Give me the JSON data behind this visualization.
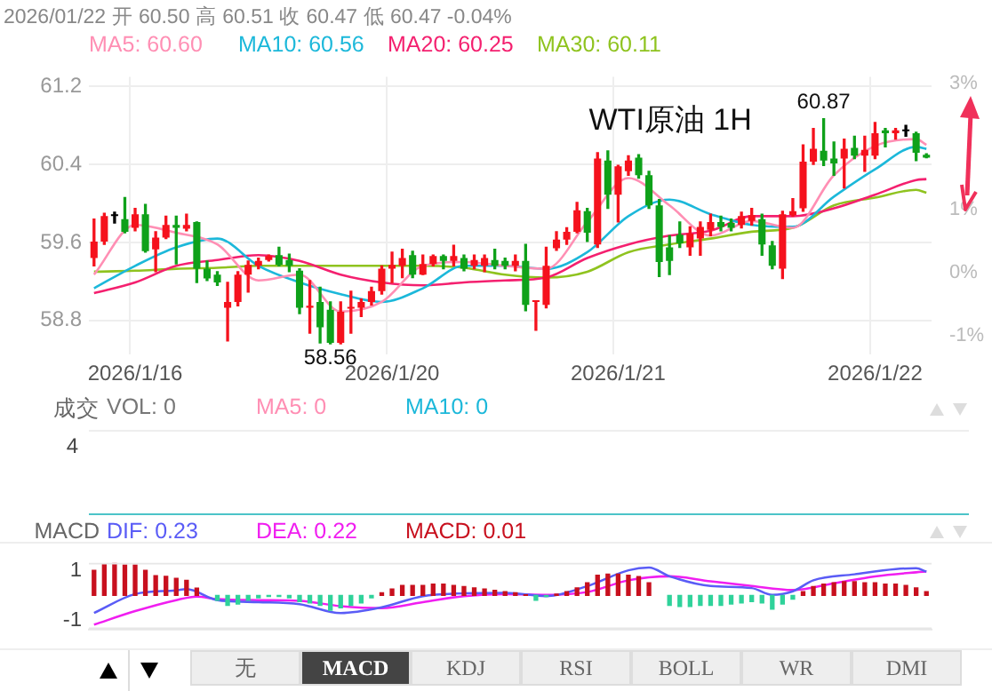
{
  "chart_data": [
    {
      "type": "candlestick",
      "title": "WTI原油 1H",
      "subtitle": "2026/01/22 开 60.50 高 60.51 收 60.47 低 60.47 -0.04%",
      "categories": [
        null,
        null,
        null,
        null,
        "2026/1/16",
        null,
        null,
        null,
        null,
        null,
        null,
        null,
        null,
        null,
        null,
        null,
        null,
        null,
        null,
        null,
        null,
        null,
        null,
        null,
        null,
        null,
        null,
        null,
        null,
        "2026/1/20",
        null,
        null,
        null,
        null,
        null,
        null,
        null,
        null,
        null,
        null,
        null,
        null,
        null,
        null,
        null,
        null,
        null,
        null,
        null,
        null,
        null,
        "2026/1/21",
        null,
        null,
        null,
        null,
        null,
        null,
        null,
        null,
        null,
        null,
        null,
        null,
        null,
        null,
        null,
        null,
        null,
        null,
        null,
        null,
        null,
        null,
        null,
        null,
        "2026/1/22",
        null,
        null,
        null,
        null,
        null
      ],
      "ohlc": [
        [
          59.44,
          59.84,
          59.36,
          59.61
        ],
        [
          59.61,
          59.9,
          59.58,
          59.87
        ],
        [
          59.87,
          59.91,
          59.8,
          59.87
        ],
        [
          59.84,
          60.06,
          59.7,
          59.71
        ],
        [
          59.75,
          59.95,
          59.72,
          59.89
        ],
        [
          59.89,
          59.99,
          59.5,
          59.51
        ],
        [
          59.53,
          59.71,
          59.3,
          59.65
        ],
        [
          59.65,
          59.87,
          59.64,
          59.78
        ],
        [
          59.78,
          59.87,
          59.38,
          59.75
        ],
        [
          59.74,
          59.89,
          59.72,
          59.78
        ],
        [
          59.81,
          59.81,
          59.19,
          59.33
        ],
        [
          59.33,
          59.41,
          59.21,
          59.23
        ],
        [
          59.27,
          59.3,
          59.16,
          59.19
        ],
        [
          58.93,
          59.19,
          58.59,
          58.99
        ],
        [
          58.99,
          59.3,
          58.95,
          59.27
        ],
        [
          59.27,
          59.41,
          59.09,
          59.37
        ],
        [
          59.36,
          59.44,
          59.33,
          59.41
        ],
        [
          59.42,
          59.47,
          59.41,
          59.46
        ],
        [
          59.47,
          59.55,
          59.36,
          59.37
        ],
        [
          59.42,
          59.48,
          59.3,
          59.36
        ],
        [
          59.31,
          59.33,
          58.87,
          58.93
        ],
        [
          58.93,
          59.21,
          58.67,
          58.95
        ],
        [
          58.99,
          59.14,
          58.57,
          58.73
        ],
        [
          58.91,
          58.99,
          58.56,
          58.57
        ],
        [
          58.57,
          58.99,
          58.56,
          58.89
        ],
        [
          58.92,
          59.1,
          58.67,
          58.94
        ],
        [
          58.93,
          59.02,
          58.84,
          58.99
        ],
        [
          58.99,
          59.14,
          58.96,
          59.1
        ],
        [
          59.1,
          59.36,
          59.07,
          59.33
        ],
        [
          59.33,
          59.5,
          59.19,
          59.37
        ],
        [
          59.36,
          59.53,
          59.24,
          59.44
        ],
        [
          59.47,
          59.51,
          59.24,
          59.27
        ],
        [
          59.27,
          59.47,
          59.27,
          59.38
        ],
        [
          59.38,
          59.47,
          59.36,
          59.46
        ],
        [
          59.46,
          59.47,
          59.33,
          59.41
        ],
        [
          59.41,
          59.57,
          59.36,
          59.46
        ],
        [
          59.44,
          59.47,
          59.31,
          59.33
        ],
        [
          59.36,
          59.47,
          59.33,
          59.42
        ],
        [
          59.36,
          59.47,
          59.3,
          59.44
        ],
        [
          59.42,
          59.53,
          59.33,
          59.36
        ],
        [
          59.41,
          59.44,
          59.33,
          59.36
        ],
        [
          59.36,
          59.47,
          59.31,
          59.41
        ],
        [
          59.41,
          59.58,
          58.9,
          58.96
        ],
        [
          58.99,
          59.0,
          58.7,
          59.0
        ],
        [
          58.96,
          59.55,
          58.93,
          59.36
        ],
        [
          59.54,
          59.71,
          59.52,
          59.63
        ],
        [
          59.63,
          59.75,
          59.58,
          59.71
        ],
        [
          59.71,
          60.01,
          59.7,
          59.93
        ],
        [
          59.92,
          59.95,
          59.61,
          59.7
        ],
        [
          59.58,
          60.52,
          59.55,
          60.46
        ],
        [
          60.44,
          60.54,
          59.95,
          60.09
        ],
        [
          60.09,
          60.39,
          59.81,
          60.38
        ],
        [
          60.33,
          60.49,
          60.29,
          60.44
        ],
        [
          60.47,
          60.5,
          60.26,
          60.29
        ],
        [
          60.29,
          60.33,
          59.95,
          59.98
        ],
        [
          59.98,
          60.04,
          59.25,
          59.4
        ],
        [
          59.55,
          59.67,
          59.27,
          59.41
        ],
        [
          59.68,
          59.81,
          59.55,
          59.59
        ],
        [
          59.55,
          59.76,
          59.47,
          59.69
        ],
        [
          59.64,
          59.81,
          59.47,
          59.76
        ],
        [
          59.73,
          59.89,
          59.67,
          59.81
        ],
        [
          59.81,
          59.87,
          59.72,
          59.76
        ],
        [
          59.8,
          59.84,
          59.72,
          59.75
        ],
        [
          59.78,
          59.91,
          59.75,
          59.87
        ],
        [
          59.82,
          59.95,
          59.78,
          59.88
        ],
        [
          59.84,
          59.89,
          59.47,
          59.58
        ],
        [
          59.57,
          59.61,
          59.33,
          59.36
        ],
        [
          59.33,
          59.92,
          59.23,
          59.89
        ],
        [
          59.88,
          60.05,
          59.87,
          59.92
        ],
        [
          59.95,
          60.6,
          59.92,
          60.43
        ],
        [
          60.43,
          60.77,
          60.4,
          60.56
        ],
        [
          60.54,
          60.87,
          60.39,
          60.44
        ],
        [
          60.46,
          60.63,
          60.29,
          60.41
        ],
        [
          60.46,
          60.66,
          60.16,
          60.56
        ],
        [
          60.57,
          60.69,
          60.46,
          60.49
        ],
        [
          60.49,
          60.69,
          60.33,
          60.55
        ],
        [
          60.49,
          60.83,
          60.46,
          60.72
        ],
        [
          60.75,
          60.77,
          60.58,
          60.72
        ],
        [
          60.72,
          60.77,
          60.66,
          60.75
        ],
        [
          60.74,
          60.8,
          60.69,
          60.74
        ],
        [
          60.72,
          60.73,
          60.44,
          60.52
        ],
        [
          60.5,
          60.51,
          60.47,
          60.47
        ]
      ],
      "colors": [
        "#f5121d",
        "#f5121d",
        "#000000",
        "#0fa11a",
        "#f5121d",
        "#0fa11a",
        "#f5121d",
        "#f5121d",
        "#0fa11a",
        "#f5121d",
        "#0fa11a",
        "#0fa11a",
        "#0fa11a",
        "#f5121d",
        "#f5121d",
        "#f5121d",
        "#f5121d",
        "#f5121d",
        "#0fa11a",
        "#0fa11a",
        "#0fa11a",
        "#f5121d",
        "#0fa11a",
        "#0fa11a",
        "#f5121d",
        "#f5121d",
        "#f5121d",
        "#f5121d",
        "#f5121d",
        "#f5121d",
        "#f5121d",
        "#0fa11a",
        "#f5121d",
        "#f5121d",
        "#0fa11a",
        "#f5121d",
        "#0fa11a",
        "#f5121d",
        "#f5121d",
        "#0fa11a",
        "#0fa11a",
        "#f5121d",
        "#0fa11a",
        "#f5121d",
        "#f5121d",
        "#f5121d",
        "#f5121d",
        "#f5121d",
        "#0fa11a",
        "#f5121d",
        "#0fa11a",
        "#f5121d",
        "#f5121d",
        "#0fa11a",
        "#0fa11a",
        "#0fa11a",
        "#0fa11a",
        "#0fa11a",
        "#f5121d",
        "#f5121d",
        "#f5121d",
        "#0fa11a",
        "#0fa11a",
        "#f5121d",
        "#f5121d",
        "#0fa11a",
        "#0fa11a",
        "#f5121d",
        "#f5121d",
        "#f5121d",
        "#f5121d",
        "#0fa11a",
        "#0fa11a",
        "#f5121d",
        "#0fa11a",
        "#f5121d",
        "#f5121d",
        "#0fa11a",
        "#f5121d",
        "#000000",
        "#0fa11a",
        "#0fa11a"
      ],
      "series": [
        {
          "name": "MA5: 60.60",
          "type": "line",
          "color": "#ff8fb4",
          "values": [
            59.27,
            null,
            null,
            null,
            59.78,
            null,
            null,
            null,
            59.7,
            null,
            null,
            null,
            59.58,
            null,
            null,
            null,
            59.21,
            null,
            null,
            null,
            59.27,
            null,
            null,
            null,
            58.89,
            null,
            null,
            null,
            58.99,
            null,
            null,
            null,
            59.36,
            null,
            null,
            null,
            59.4,
            null,
            null,
            null,
            59.36,
            null,
            null,
            null,
            59.33,
            null,
            null,
            null,
            59.81,
            null,
            null,
            null,
            60.26,
            null,
            null,
            null,
            59.98,
            null,
            null,
            null,
            59.67,
            null,
            null,
            null,
            59.82,
            null,
            null,
            null,
            59.75,
            null,
            null,
            null,
            60.29,
            null,
            null,
            null,
            60.59,
            null,
            null,
            null,
            60.66,
            60.6
          ]
        },
        {
          "name": "MA10: 60.56",
          "type": "line",
          "color": "#1cb8da",
          "values": [
            59.13,
            null,
            null,
            null,
            59.36,
            null,
            null,
            null,
            59.55,
            null,
            null,
            null,
            59.64,
            null,
            null,
            null,
            59.36,
            null,
            null,
            null,
            59.19,
            null,
            null,
            null,
            59.07,
            null,
            null,
            null,
            58.99,
            null,
            null,
            null,
            59.13,
            null,
            null,
            null,
            59.36,
            null,
            null,
            null,
            59.36,
            null,
            null,
            null,
            59.33,
            null,
            null,
            null,
            59.5,
            null,
            null,
            null,
            59.87,
            null,
            null,
            null,
            60.04,
            null,
            null,
            null,
            59.89,
            null,
            null,
            null,
            59.78,
            null,
            null,
            null,
            59.76,
            null,
            null,
            null,
            60.07,
            null,
            null,
            null,
            60.35,
            null,
            null,
            null,
            60.58,
            60.56
          ]
        },
        {
          "name": "MA20: 60.25",
          "type": "line",
          "color": "#f4206f",
          "values": [
            59.08,
            null,
            null,
            null,
            59.19,
            null,
            null,
            null,
            59.36,
            null,
            null,
            null,
            59.42,
            null,
            null,
            null,
            59.47,
            null,
            null,
            null,
            59.41,
            null,
            null,
            null,
            59.27,
            null,
            null,
            null,
            59.19,
            null,
            null,
            null,
            59.16,
            null,
            null,
            null,
            59.19,
            null,
            null,
            null,
            59.21,
            null,
            null,
            null,
            59.24,
            null,
            null,
            null,
            59.44,
            null,
            null,
            null,
            59.58,
            null,
            null,
            null,
            59.67,
            null,
            null,
            null,
            59.72,
            null,
            null,
            null,
            59.87,
            null,
            null,
            null,
            59.87,
            null,
            null,
            null,
            59.95,
            null,
            null,
            null,
            60.09,
            null,
            null,
            null,
            60.24,
            60.25
          ]
        },
        {
          "name": "MA30: 60.11",
          "type": "line",
          "color": "#8fc31f",
          "values": [
            59.3,
            null,
            null,
            null,
            59.31,
            null,
            null,
            null,
            59.33,
            null,
            null,
            null,
            59.34,
            null,
            null,
            null,
            59.36,
            null,
            null,
            null,
            59.36,
            null,
            null,
            null,
            59.36,
            null,
            null,
            null,
            59.36,
            null,
            null,
            null,
            59.36,
            null,
            null,
            null,
            59.34,
            null,
            null,
            null,
            59.27,
            null,
            null,
            null,
            59.24,
            null,
            null,
            null,
            59.3,
            null,
            null,
            null,
            59.5,
            null,
            null,
            null,
            59.58,
            null,
            null,
            null,
            59.64,
            null,
            null,
            null,
            59.71,
            null,
            null,
            null,
            59.75,
            null,
            null,
            null,
            59.98,
            null,
            null,
            null,
            60.06,
            null,
            null,
            null,
            60.14,
            60.11
          ]
        }
      ],
      "ylim": [
        58.45,
        61.3
      ],
      "yticks": [
        58.8,
        59.6,
        60.4,
        61.2
      ],
      "y2lim": [
        -1.3,
        3.1
      ],
      "y2ticks": [
        {
          "value": -1,
          "label": "-1%"
        },
        {
          "value": 0,
          "label": "0%"
        },
        {
          "value": 1,
          "label": "1%"
        },
        {
          "value": 3,
          "label": "3%"
        }
      ],
      "annotations": [
        {
          "text": "58.56",
          "y": 58.56
        },
        {
          "text": "60.87",
          "y": 60.87
        }
      ],
      "grid": true,
      "legend": "top left"
    },
    {
      "type": "other",
      "title": "成交",
      "series": [
        {
          "name": "VOL: 0",
          "color": "#777777"
        },
        {
          "name": "MA5: 0",
          "color": "#ff8fb4"
        },
        {
          "name": "MA10: 0",
          "color": "#1cb8da"
        }
      ],
      "annotations": [
        "4"
      ]
    },
    {
      "type": "bar",
      "title": "MACD",
      "categories": [
        null,
        null,
        null,
        null,
        null,
        null,
        null,
        null,
        null,
        null,
        null,
        null,
        null,
        null,
        null,
        null,
        null,
        null,
        null,
        null,
        null,
        null,
        null,
        null,
        null,
        null,
        null,
        null,
        null,
        null,
        null,
        null,
        null,
        null,
        null,
        null,
        null,
        null,
        null,
        null,
        null,
        null,
        null,
        null,
        null,
        null,
        null,
        null,
        null,
        null,
        null,
        null,
        null,
        null,
        null,
        null,
        null,
        null,
        null,
        null,
        null,
        null,
        null,
        null,
        null,
        null,
        null,
        null,
        null,
        null,
        null,
        null,
        null,
        null,
        null,
        null,
        null,
        null,
        null,
        null,
        null,
        null
      ],
      "series": [
        {
          "name": "DIF: 0.23",
          "type": "line",
          "color": "#5a5cf6",
          "values": [
            -0.7,
            null,
            null,
            null,
            0.05,
            null,
            null,
            null,
            0.2,
            0.25,
            null,
            null,
            -0.19,
            null,
            null,
            null,
            -0.27,
            null,
            null,
            null,
            -0.35,
            null,
            null,
            null,
            -0.71,
            null,
            null,
            null,
            -0.48,
            null,
            null,
            null,
            -0.03,
            null,
            null,
            null,
            0.08,
            null,
            null,
            null,
            0.1,
            null,
            null,
            null,
            -0.03,
            null,
            null,
            null,
            0.37,
            null,
            null,
            null,
            1.0,
            null,
            1.11,
            null,
            0.76,
            null,
            null,
            null,
            0.37,
            null,
            null,
            null,
            0.29,
            null,
            0.02,
            null,
            0.16,
            null,
            0.6,
            null,
            null,
            null,
            0.84,
            null,
            null,
            null,
            1.05,
            null,
            1.08,
            0.95
          ]
        },
        {
          "name": "DEA: 0.22",
          "type": "line",
          "color": "#f01ef0",
          "values": [
            -1.17,
            null,
            null,
            null,
            -0.63,
            null,
            null,
            null,
            -0.19,
            null,
            -0.05,
            null,
            -0.15,
            null,
            null,
            null,
            -0.19,
            null,
            null,
            null,
            -0.22,
            null,
            null,
            null,
            -0.43,
            null,
            null,
            null,
            -0.51,
            null,
            null,
            null,
            -0.27,
            null,
            null,
            null,
            -0.03,
            null,
            null,
            null,
            0.05,
            null,
            null,
            null,
            0.02,
            null,
            null,
            null,
            0.13,
            null,
            null,
            null,
            0.6,
            null,
            null,
            null,
            0.76,
            null,
            null,
            null,
            0.56,
            null,
            null,
            null,
            0.37,
            null,
            null,
            null,
            0.21,
            null,
            null,
            null,
            0.48,
            null,
            null,
            null,
            0.76,
            null,
            null,
            null,
            0.92,
            0.95
          ]
        },
        {
          "name": "MACD: 0.01",
          "type": "bar",
          "color": "#c8101e",
          "values": [
            1.0,
            1.24,
            1.29,
            1.21,
            1.21,
            1.0,
            0.79,
            0.76,
            0.68,
            0.6,
            0.29,
            null,
            null,
            null,
            null,
            null,
            null,
            null,
            null,
            null,
            null,
            null,
            null,
            null,
            null,
            null,
            null,
            null,
            0.1,
            0.25,
            0.4,
            0.4,
            0.4,
            0.45,
            0.45,
            0.4,
            0.35,
            0.3,
            0.25,
            0.2,
            0.15,
            0.1,
            0.02,
            null,
            null,
            0.05,
            0.15,
            0.3,
            0.5,
            0.8,
            0.85,
            0.85,
            0.8,
            0.75,
            0.5,
            null,
            null,
            null,
            null,
            null,
            null,
            null,
            null,
            null,
            null,
            null,
            null,
            null,
            null,
            0.15,
            0.35,
            0.45,
            0.5,
            0.55,
            0.55,
            0.5,
            0.5,
            0.45,
            0.45,
            0.4,
            0.3,
            0.15
          ]
        },
        {
          "type": "bar",
          "color": "#2fd29a",
          "values": [
            null,
            null,
            null,
            null,
            null,
            null,
            null,
            null,
            null,
            null,
            null,
            null,
            -0.2,
            -0.4,
            -0.35,
            -0.2,
            -0.1,
            -0.05,
            -0.05,
            -0.1,
            -0.25,
            -0.3,
            -0.4,
            -0.6,
            -0.5,
            -0.4,
            -0.3,
            -0.1,
            null,
            null,
            null,
            null,
            null,
            null,
            null,
            null,
            null,
            null,
            null,
            null,
            null,
            null,
            null,
            -0.2,
            -0.05,
            null,
            null,
            null,
            null,
            null,
            null,
            null,
            null,
            null,
            null,
            null,
            -0.4,
            -0.45,
            -0.45,
            -0.4,
            -0.4,
            -0.4,
            -0.35,
            -0.3,
            -0.25,
            -0.3,
            -0.55,
            -0.35,
            -0.15,
            null,
            null,
            null,
            null,
            null,
            null,
            null,
            null,
            null,
            null,
            null,
            null,
            null
          ]
        }
      ],
      "ylim": [
        -1.35,
        1.3
      ],
      "yticks": [
        1,
        -1
      ],
      "tick_labels": "y",
      "legend": "top left"
    },
    {
      "type": "other",
      "annotations": [
        "无",
        "MACD",
        "KDJ",
        "RSI",
        "BOLL",
        "WR",
        "DMI"
      ]
    }
  ]
}
